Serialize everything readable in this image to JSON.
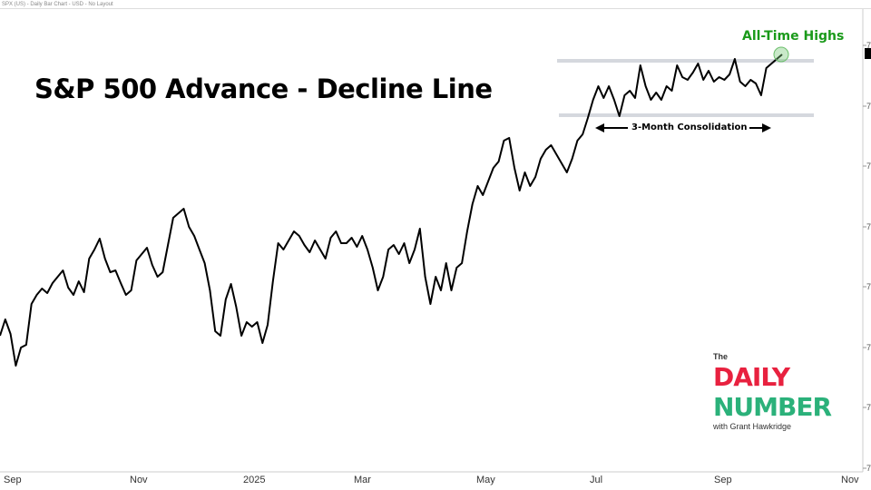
{
  "header": {
    "text": "SPX (US) - Daily Bar Chart - USD - No Layout"
  },
  "chart_data": {
    "type": "line",
    "title": "S&P 500 Advance - Decline Line",
    "x_tick_labels": [
      "Sep",
      "Nov",
      "2025",
      "Mar",
      "May",
      "Jul",
      "Sep",
      "Nov"
    ],
    "y_tick_labels": [
      "7",
      "7",
      "7",
      "7",
      "7",
      "7",
      "7",
      "7"
    ],
    "grid": false,
    "line_color": "#000000",
    "annotations": {
      "all_time_highs": "All-Time Highs",
      "consolidation": "3-Month Consolidation",
      "annotation_color": "#1a9a1a",
      "band_color": "#d5d8de"
    },
    "values": [
      150,
      168,
      152,
      117,
      137,
      140,
      185,
      195,
      202,
      197,
      208,
      215,
      222,
      203,
      195,
      210,
      198,
      235,
      245,
      257,
      235,
      220,
      222,
      208,
      195,
      200,
      233,
      240,
      247,
      228,
      215,
      220,
      250,
      280,
      285,
      290,
      270,
      260,
      245,
      230,
      200,
      155,
      150,
      190,
      207,
      182,
      150,
      165,
      160,
      165,
      142,
      162,
      210,
      252,
      245,
      255,
      265,
      260,
      250,
      242,
      255,
      245,
      235,
      258,
      265,
      252,
      252,
      258,
      248,
      260,
      245,
      225,
      200,
      215,
      245,
      250,
      240,
      252,
      230,
      245,
      268,
      215,
      185,
      215,
      200,
      230,
      200,
      225,
      230,
      265,
      295,
      315,
      305,
      320,
      335,
      342,
      365,
      368,
      335,
      310,
      330,
      315,
      325,
      345,
      355,
      360,
      350,
      340,
      330,
      345,
      365,
      372,
      390,
      410,
      425,
      412,
      425,
      410,
      392,
      415,
      420,
      412,
      448,
      425,
      410,
      418,
      410,
      425,
      420,
      448,
      435,
      432,
      440,
      450,
      432,
      442,
      430,
      435,
      432,
      438,
      455,
      430,
      425,
      432,
      428,
      415,
      445,
      450,
      455,
      460
    ]
  },
  "logo": {
    "the": "The",
    "daily": "DAILY",
    "number": "NUMBER",
    "with": "with Grant Hawkridge"
  }
}
